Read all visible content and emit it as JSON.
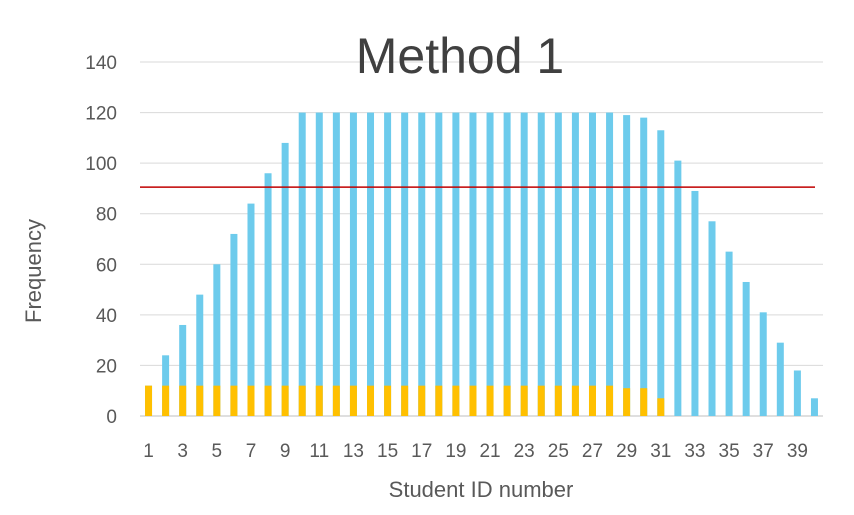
{
  "chart_data": {
    "type": "bar",
    "stacked": false,
    "title": "Method 1",
    "xlabel": "Student ID number",
    "ylabel": "Frequency",
    "ylim": [
      0,
      140
    ],
    "yticks": [
      0,
      20,
      40,
      60,
      80,
      100,
      120,
      140
    ],
    "grid": true,
    "categories": [
      1,
      2,
      3,
      4,
      5,
      6,
      7,
      8,
      9,
      10,
      11,
      12,
      13,
      14,
      15,
      16,
      17,
      18,
      19,
      20,
      21,
      22,
      23,
      24,
      25,
      26,
      27,
      28,
      29,
      30,
      31,
      32,
      33,
      34,
      35,
      36,
      37,
      38,
      39,
      40
    ],
    "x_tick_labels": [
      "1",
      "3",
      "5",
      "7",
      "9",
      "11",
      "13",
      "15",
      "17",
      "19",
      "21",
      "23",
      "25",
      "27",
      "29",
      "31",
      "33",
      "35",
      "37",
      "39"
    ],
    "series": [
      {
        "color": "#6DCBEC",
        "values": [
          12,
          24,
          36,
          48,
          60,
          72,
          84,
          96,
          108,
          120,
          120,
          120,
          120,
          120,
          120,
          120,
          120,
          120,
          120,
          120,
          120,
          120,
          120,
          120,
          120,
          120,
          120,
          120,
          119,
          118,
          113,
          101,
          89,
          77,
          65,
          53,
          41,
          29,
          18,
          7
        ]
      },
      {
        "color": "#FFC000",
        "values": [
          12,
          12,
          12,
          12,
          12,
          12,
          12,
          12,
          12,
          12,
          12,
          12,
          12,
          12,
          12,
          12,
          12,
          12,
          12,
          12,
          12,
          12,
          12,
          12,
          12,
          12,
          12,
          12,
          11,
          11,
          7,
          0,
          0,
          0,
          0,
          0,
          0,
          0,
          0,
          0
        ]
      }
    ],
    "reference_line": {
      "value": 90.5,
      "color": "#C00000"
    }
  }
}
